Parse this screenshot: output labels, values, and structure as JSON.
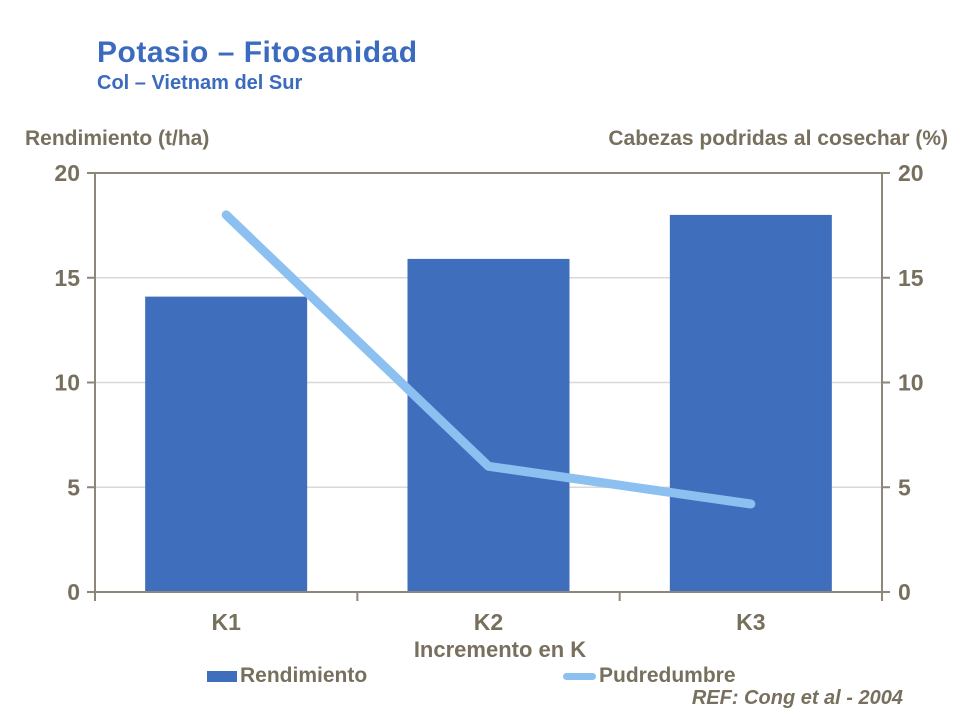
{
  "header": {
    "title": "Potasio – Fitosanidad",
    "subtitle": "Col – Vietnam del Sur"
  },
  "axes": {
    "left_title": "Rendimiento (t/ha)",
    "right_title": "Cabezas podridas al cosechar (%)",
    "x_title": "Incremento en K"
  },
  "footer": {
    "reference": "REF: Cong et al - 2004"
  },
  "colors": {
    "title": "#3B6BBE",
    "bar": "#3F6EBC",
    "line": "#8CC0F0",
    "frame": "#8E8678",
    "grid": "#D9D9D9",
    "text": "#78705F"
  },
  "chart_data": {
    "type": "bar+line",
    "categories": [
      "K1",
      "K2",
      "K3"
    ],
    "series": [
      {
        "name": "Rendimiento",
        "type": "bar",
        "axis": "left",
        "color": "#3F6EBC",
        "values": [
          14.1,
          15.9,
          18.0
        ]
      },
      {
        "name": "Pudredumbre",
        "type": "line",
        "axis": "right",
        "color": "#8CC0F0",
        "values": [
          18,
          6,
          4.2
        ]
      }
    ],
    "title": "Potasio – Fitosanidad",
    "subtitle": "Col – Vietnam del Sur",
    "xlabel": "Incremento en K",
    "ylabel_left": "Rendimiento (t/ha)",
    "ylabel_right": "Cabezas podridas al cosechar (%)",
    "ylim": [
      0,
      20
    ],
    "yticks": [
      0,
      5,
      10,
      15,
      20
    ],
    "grid": true,
    "legend_position": "bottom"
  }
}
